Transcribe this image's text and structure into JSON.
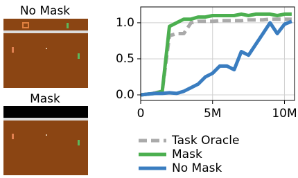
{
  "panels": [
    {
      "title": "No Mask"
    },
    {
      "title": "Mask"
    }
  ],
  "chart_data": {
    "type": "line",
    "x": [
      0,
      500000,
      1000000,
      1500000,
      2000000,
      2500000,
      3000000,
      3500000,
      4000000,
      4500000,
      5000000,
      5500000,
      6000000,
      6500000,
      7000000,
      7500000,
      8000000,
      8500000,
      9000000,
      9500000,
      10000000,
      10500000
    ],
    "series": [
      {
        "name": "Task Oracle",
        "color": "#aaaaaa",
        "dashed": true,
        "values": [
          0,
          0.01,
          0.03,
          0.05,
          0.82,
          0.85,
          0.85,
          1.0,
          1.02,
          1.02,
          1.02,
          1.03,
          1.03,
          1.03,
          1.03,
          1.04,
          1.04,
          1.04,
          1.05,
          1.05,
          1.05,
          1.05
        ]
      },
      {
        "name": "Mask",
        "color": "#4caf50",
        "values": [
          0,
          0.01,
          0.02,
          0.05,
          0.95,
          1.0,
          1.05,
          1.05,
          1.08,
          1.08,
          1.1,
          1.1,
          1.1,
          1.1,
          1.12,
          1.1,
          1.12,
          1.12,
          1.12,
          1.1,
          1.12,
          1.12
        ]
      },
      {
        "name": "No Mask",
        "color": "#3a7dc0",
        "values": [
          0,
          0.01,
          0.02,
          0.02,
          0.03,
          0.02,
          0.05,
          0.1,
          0.15,
          0.25,
          0.3,
          0.4,
          0.4,
          0.35,
          0.6,
          0.55,
          0.7,
          0.85,
          1.0,
          0.85,
          0.98,
          1.02
        ]
      }
    ],
    "xlim": [
      0,
      10700000
    ],
    "xticks": [
      0,
      {
        "value": 5000000,
        "label": "5M"
      },
      {
        "value": 10000000,
        "label": "10M"
      }
    ],
    "ylim": [
      -0.077,
      1.22
    ],
    "yticks": [
      {
        "value": 0,
        "label": "0.0"
      },
      0.5,
      {
        "value": 1,
        "label": "1.0"
      }
    ],
    "grid": true
  }
}
